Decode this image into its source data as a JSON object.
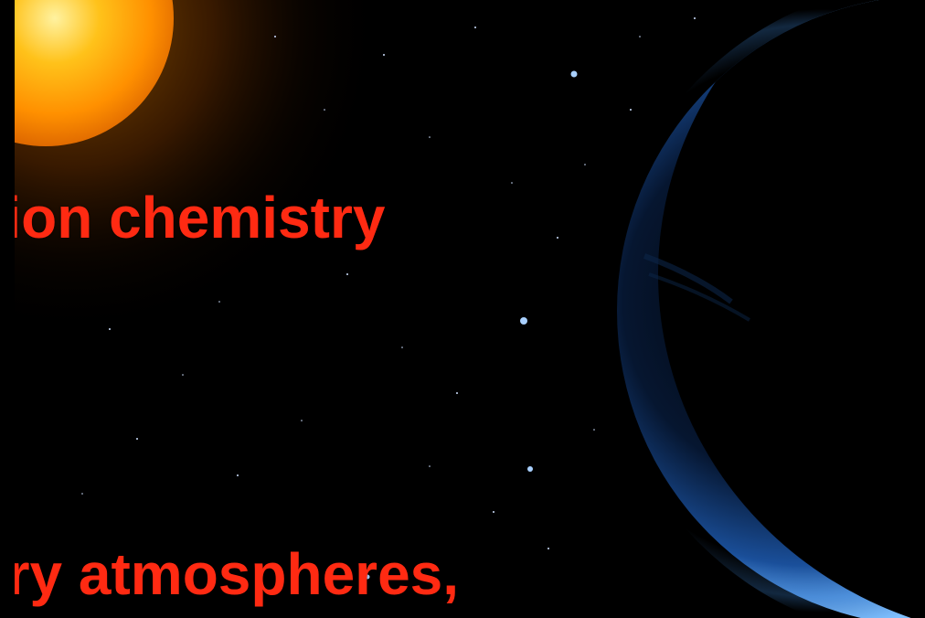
{
  "slide": {
    "headline_top": "tion chemistry",
    "headline_bottom": "ary atmospheres,"
  },
  "colors": {
    "background": "#000000",
    "text": "#ff2a12",
    "sun": "#ffb000",
    "planet": "#3a7fd0"
  },
  "icons": [
    "sun-image",
    "planet-image",
    "star-field"
  ]
}
